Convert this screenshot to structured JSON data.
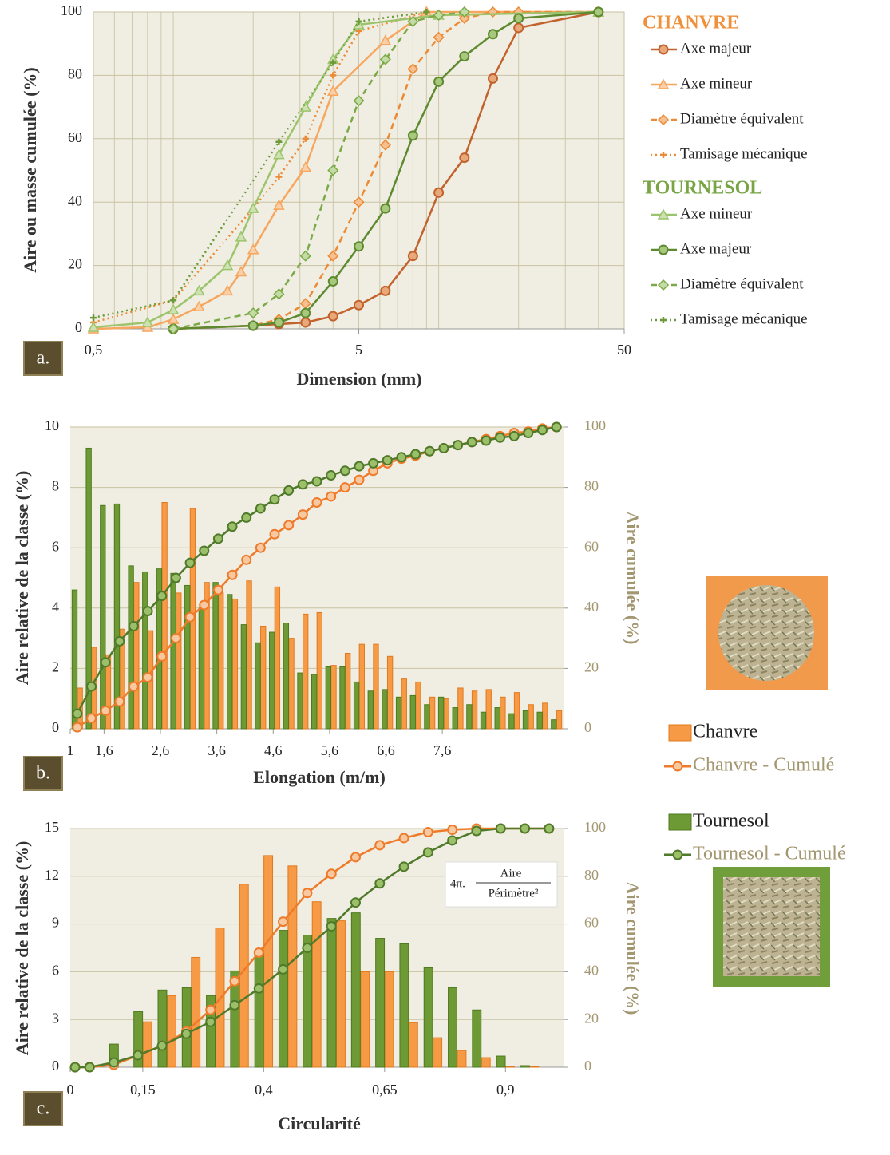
{
  "chart_data": [
    {
      "type": "line",
      "panel_label": "a.",
      "x_label": "Dimension (mm)",
      "y_label": "Aire ou masse cumulée (%)",
      "xscale": "log",
      "xlim": [
        0.5,
        50
      ],
      "xticks": [
        {
          "value": 0.5,
          "label": "0,5"
        },
        5,
        50
      ],
      "ylim": [
        0,
        100
      ],
      "yticks": [
        0,
        20,
        40,
        60,
        80,
        100
      ],
      "grid": true,
      "groups": [
        {
          "name": "CHANVRE",
          "color": "#f0903a",
          "series": [
            {
              "name": "Axe majeur",
              "color": "#c2622d",
              "marker": "circle",
              "marker_fill": "#e9a87a",
              "dash": "solid",
              "x": [
                1,
                2,
                2.5,
                3.15,
                4,
                5,
                6.3,
                8,
                10,
                12.5,
                16,
                20,
                40
              ],
              "values": [
                0,
                1,
                1.5,
                2,
                4,
                7.5,
                12,
                23,
                43,
                54,
                79,
                95,
                100
              ]
            },
            {
              "name": "Axe mineur",
              "color": "#f6a65e",
              "marker": "triangle",
              "marker_fill": "#fbd0a8",
              "dash": "solid",
              "x": [
                0.5,
                0.8,
                1,
                1.25,
                1.6,
                1.8,
                2,
                2.5,
                3.15,
                4,
                6.3,
                9,
                12.5,
                40
              ],
              "values": [
                0,
                0.5,
                3,
                7,
                12,
                18,
                25,
                39,
                51,
                75,
                91,
                100,
                100,
                100
              ]
            },
            {
              "name": "Diamètre équivalent",
              "color": "#ec8a35",
              "marker": "diamond",
              "marker_fill": "#f6c090",
              "dash": "dashed",
              "x": [
                1,
                2,
                2.5,
                3.15,
                4,
                5,
                6.3,
                8,
                10,
                12.5,
                16,
                20,
                40
              ],
              "values": [
                0,
                1,
                3,
                8,
                23,
                40,
                58,
                82,
                92,
                98,
                100,
                100,
                100
              ]
            },
            {
              "name": "Tamisage mécanique",
              "color": "#ec8a35",
              "marker": "plus",
              "marker_fill": "#ec8a35",
              "dash": "dotted",
              "x": [
                0.5,
                1,
                2,
                2.5,
                3.15,
                4,
                5,
                9
              ],
              "values": [
                2,
                9,
                38,
                48,
                60,
                80,
                94,
                100
              ]
            }
          ]
        },
        {
          "name": "TOURNESOL",
          "color": "#77a544",
          "series": [
            {
              "name": "Axe mineur",
              "color": "#9cc46c",
              "marker": "triangle",
              "marker_fill": "#cde2b0",
              "dash": "solid",
              "x": [
                0.5,
                0.8,
                1,
                1.25,
                1.6,
                1.8,
                2,
                2.5,
                3.15,
                4,
                5,
                10,
                40
              ],
              "values": [
                0.5,
                2,
                6,
                12,
                20,
                29,
                38,
                55,
                70,
                85,
                96,
                99,
                100
              ]
            },
            {
              "name": "Axe majeur",
              "color": "#5d8a2f",
              "marker": "circle",
              "marker_fill": "#a8c87e",
              "dash": "solid",
              "x": [
                1,
                2,
                2.5,
                3.15,
                4,
                5,
                6.3,
                8,
                10,
                12.5,
                16,
                20,
                40
              ],
              "values": [
                0,
                1,
                2,
                5,
                15,
                26,
                38,
                61,
                78,
                86,
                93,
                98,
                100
              ]
            },
            {
              "name": "Diamètre équivalent",
              "color": "#7aaa48",
              "marker": "diamond",
              "marker_fill": "#c4dca4",
              "dash": "dashed",
              "x": [
                1,
                2,
                2.5,
                3.15,
                4,
                5,
                6.3,
                8,
                10,
                12.5
              ],
              "values": [
                0,
                5,
                11,
                23,
                50,
                72,
                85,
                97,
                99,
                100
              ]
            },
            {
              "name": "Tamisage mécanique",
              "color": "#6b9a38",
              "marker": "plus",
              "marker_fill": "#6b9a38",
              "dash": "dotted",
              "x": [
                0.5,
                1,
                2.5,
                4,
                5,
                9
              ],
              "values": [
                3.5,
                9,
                59,
                84,
                97,
                100
              ]
            }
          ]
        }
      ]
    },
    {
      "type": "bar_line",
      "panel_label": "b.",
      "x_label": "Elongation (m/m)",
      "y_label": "Aire relative de la classe (%)",
      "y2_label": "Aire cumulée (%)",
      "y2_color": "#a39771",
      "xlim": [
        1,
        9.75
      ],
      "xticks": [
        1,
        {
          "value": 1.6,
          "label": "1,6"
        },
        {
          "value": 2.6,
          "label": "2,6"
        },
        {
          "value": 3.6,
          "label": "3,6"
        },
        {
          "value": 4.6,
          "label": "4,6"
        },
        {
          "value": 5.6,
          "label": "5,6"
        },
        {
          "value": 6.6,
          "label": "6,6"
        },
        {
          "value": 7.6,
          "label": "7,6"
        }
      ],
      "ylim": [
        0,
        10
      ],
      "yticks": [
        0,
        2,
        4,
        6,
        8,
        10
      ],
      "y2lim": [
        0,
        100
      ],
      "y2ticks": [
        0,
        20,
        40,
        60,
        80,
        100
      ],
      "grid": true,
      "legend": true,
      "x": [
        1.125,
        1.375,
        1.625,
        1.875,
        2.125,
        2.375,
        2.625,
        2.875,
        3.125,
        3.375,
        3.625,
        3.875,
        4.125,
        4.375,
        4.625,
        4.875,
        5.125,
        5.375,
        5.625,
        5.875,
        6.125,
        6.375,
        6.625,
        6.875,
        7.125,
        7.375,
        7.625,
        7.875,
        8.125,
        8.375,
        8.625,
        8.875,
        9.125,
        9.375,
        9.625
      ],
      "series": [
        {
          "name": "Chanvre",
          "kind": "bar",
          "color": "#f79a45",
          "stroke": "#e07a20",
          "values": [
            1.35,
            2.7,
            2.45,
            3.3,
            4.85,
            3.25,
            7.5,
            4.5,
            7.3,
            4.85,
            4.5,
            4.3,
            4.9,
            3.4,
            4.7,
            3.0,
            3.8,
            3.85,
            2.1,
            2.5,
            2.8,
            2.8,
            2.4,
            1.65,
            1.55,
            1.05,
            1.0,
            1.35,
            1.25,
            1.3,
            1.05,
            1.2,
            0.8,
            0.85,
            0.6
          ]
        },
        {
          "name": "Chanvre - Cumulé",
          "kind": "line",
          "axis": "y2",
          "color": "#ee7a2a",
          "marker_fill": "#f8c9a0",
          "values": [
            0.5,
            3.5,
            6,
            9,
            14,
            17,
            24,
            30,
            37,
            41,
            46,
            51,
            56,
            60,
            64.5,
            67.5,
            71,
            75,
            77,
            80,
            82.5,
            85.5,
            88,
            89.5,
            90.5,
            92,
            93,
            94,
            95,
            96,
            97,
            98,
            98.5,
            99.5,
            100
          ]
        },
        {
          "name": "Tournesol",
          "kind": "bar",
          "color": "#6e9a35",
          "stroke": "#4e7a20",
          "values": [
            4.6,
            9.3,
            7.4,
            7.45,
            5.4,
            5.2,
            5.3,
            5.15,
            4.75,
            4.0,
            4.85,
            4.45,
            3.45,
            2.85,
            3.2,
            3.5,
            1.85,
            1.8,
            2.05,
            2.05,
            1.55,
            1.25,
            1.3,
            1.05,
            1.1,
            0.8,
            1.05,
            0.7,
            0.8,
            0.55,
            0.7,
            0.5,
            0.6,
            0.55,
            0.3
          ]
        },
        {
          "name": "Tournesol - Cumulé",
          "kind": "line",
          "axis": "y2",
          "color": "#4f7a2a",
          "marker_fill": "#9cc06a",
          "values": [
            5,
            14,
            22,
            29,
            34,
            39,
            44,
            50,
            55,
            59,
            63,
            67,
            70,
            73,
            76,
            79,
            81,
            82,
            84,
            85.5,
            87,
            88,
            89,
            90,
            91,
            92,
            93,
            94,
            95,
            95.5,
            96.5,
            97,
            98,
            99,
            100
          ]
        }
      ]
    },
    {
      "type": "bar_line",
      "panel_label": "c.",
      "x_label": "Circularité",
      "y_label": "Aire relative de la classe (%)",
      "y2_label": "Aire cumulée (%)",
      "y2_color": "#a39771",
      "xlim": [
        0,
        1.02
      ],
      "xticks": [
        0,
        {
          "value": 0.15,
          "label": "0,15"
        },
        {
          "value": 0.4,
          "label": "0,4"
        },
        {
          "value": 0.65,
          "label": "0,65"
        },
        {
          "value": 0.9,
          "label": "0,9"
        }
      ],
      "ylim": [
        0,
        15
      ],
      "yticks": [
        0,
        3,
        6,
        9,
        12,
        15
      ],
      "y2lim": [
        0,
        100
      ],
      "y2ticks": [
        0,
        20,
        40,
        60,
        80,
        100
      ],
      "grid": true,
      "formula": {
        "prefix": "4π.",
        "numerator": "Aire",
        "denominator": "Périmètre²"
      },
      "series": [
        {
          "kind": "bar",
          "color": "#f79a45",
          "stroke": "#e07a20",
          "x": [
            0.1,
            0.15,
            0.2,
            0.25,
            0.3,
            0.35,
            0.4,
            0.45,
            0.5,
            0.55,
            0.6,
            0.65,
            0.7,
            0.75,
            0.8,
            0.85,
            0.9,
            0.95
          ],
          "values": [
            0,
            2.85,
            4.5,
            6.9,
            8.75,
            11.5,
            13.3,
            12.65,
            10.4,
            9.2,
            6.0,
            6.0,
            2.8,
            1.85,
            1.05,
            0.6,
            0.05,
            0.05
          ]
        },
        {
          "kind": "line",
          "axis": "y2",
          "color": "#ee7a2a",
          "marker_fill": "#f8c9a0",
          "x": [
            0.01,
            0.04,
            0.09,
            0.14,
            0.19,
            0.24,
            0.29,
            0.34,
            0.39,
            0.44,
            0.49,
            0.54,
            0.59,
            0.64,
            0.69,
            0.74,
            0.79,
            0.84,
            0.89,
            0.94,
            0.99
          ],
          "values": [
            0,
            0,
            1,
            5,
            9,
            15,
            24,
            36,
            48,
            61,
            73,
            81,
            88,
            93,
            96,
            98.5,
            99.5,
            100,
            100,
            100,
            100
          ]
        },
        {
          "kind": "bar",
          "color": "#6e9a35",
          "stroke": "#4e7a20",
          "x": [
            0.1,
            0.15,
            0.2,
            0.25,
            0.3,
            0.35,
            0.4,
            0.45,
            0.5,
            0.55,
            0.6,
            0.65,
            0.7,
            0.75,
            0.8,
            0.85,
            0.9,
            0.95
          ],
          "values": [
            1.45,
            3.5,
            4.85,
            5.0,
            4.5,
            6.05,
            7.25,
            8.6,
            8.3,
            9.35,
            9.7,
            8.1,
            7.75,
            6.25,
            5.0,
            3.6,
            0.7,
            0.1
          ]
        },
        {
          "kind": "line",
          "axis": "y2",
          "color": "#4f7a2a",
          "marker_fill": "#9cc06a",
          "x": [
            0.01,
            0.04,
            0.09,
            0.14,
            0.19,
            0.24,
            0.29,
            0.34,
            0.39,
            0.44,
            0.49,
            0.54,
            0.59,
            0.64,
            0.69,
            0.74,
            0.79,
            0.84,
            0.89,
            0.94,
            0.99
          ],
          "values": [
            0,
            0,
            2,
            5,
            9,
            14,
            19,
            26,
            33,
            41,
            50,
            59,
            69,
            77,
            84,
            90,
            95,
            99,
            100,
            100,
            100
          ]
        }
      ]
    }
  ]
}
